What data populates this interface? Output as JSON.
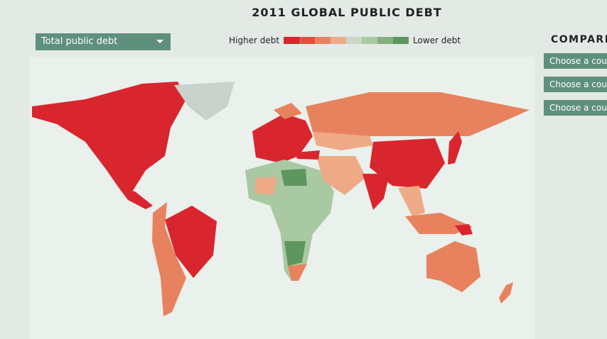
{
  "header": {
    "title": "2011 GLOBAL PUBLIC DEBT"
  },
  "dropdown": {
    "label": "Total public debt"
  },
  "legend": {
    "high_label": "Higher debt",
    "low_label": "Lower debt",
    "colors": [
      "#d9262e",
      "#e0503e",
      "#e8825e",
      "#eeaa86",
      "#c9d8c4",
      "#a9c9a3",
      "#84b07e",
      "#5e9660"
    ]
  },
  "compare": {
    "title": "COMPARE",
    "buttons": [
      "Choose a cou",
      "Choose a cou",
      "Choose a cou"
    ]
  }
}
